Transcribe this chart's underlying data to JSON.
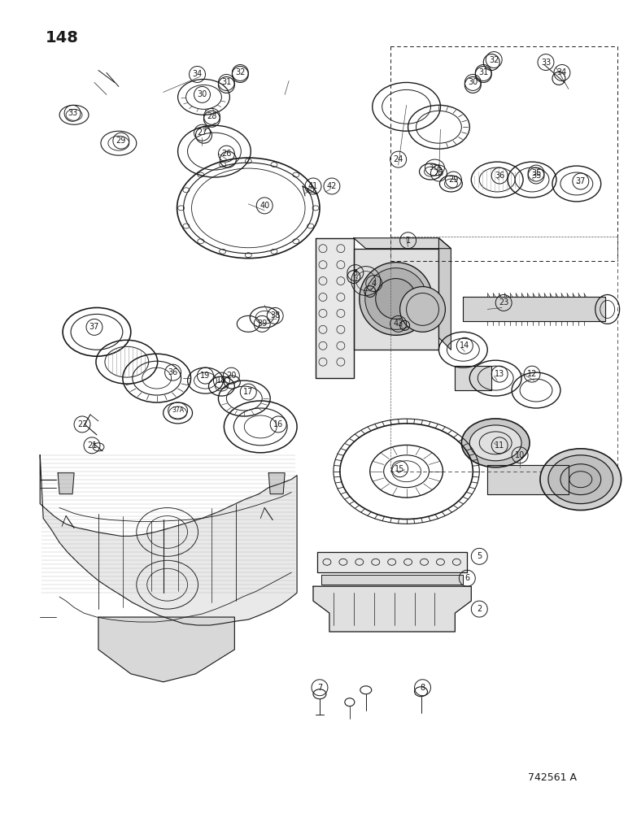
{
  "page_number": "148",
  "part_number_label": "742561 A",
  "background_color": "#ffffff",
  "text_color": "#1a1a1a",
  "page_num_fontsize": 14,
  "part_label_fontsize": 10
}
